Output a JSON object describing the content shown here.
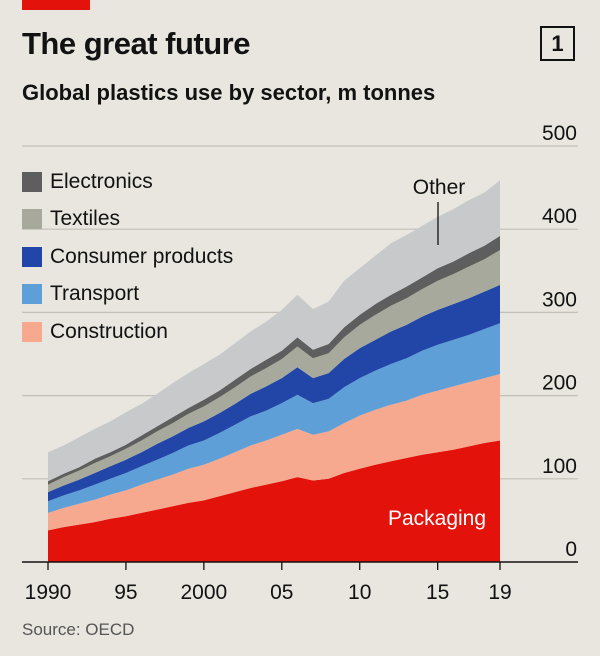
{
  "header": {
    "title": "The great future",
    "chart_number": "1"
  },
  "subtitle": "Global plastics use by sector, m tonnes",
  "source": "Source: OECD",
  "colors": {
    "Packaging": "#e3120b",
    "Construction": "#f6a98e",
    "Transport": "#5e9fd8",
    "Consumer products": "#2146a8",
    "Textiles": "#a8a99d",
    "Electronics": "#5e5e5e",
    "Other": "#c7c9cb",
    "gridline": "#c2bfb6",
    "baseline": "#121212"
  },
  "legend": [
    "Electronics",
    "Textiles",
    "Consumer products",
    "Transport",
    "Construction"
  ],
  "chart_data": {
    "type": "area",
    "stacked": true,
    "title": "The great future",
    "subtitle": "Global plastics use by sector, m tonnes",
    "x": [
      1990,
      1991,
      1992,
      1993,
      1994,
      1995,
      1996,
      1997,
      1998,
      1999,
      2000,
      2001,
      2002,
      2003,
      2004,
      2005,
      2006,
      2007,
      2008,
      2009,
      2010,
      2011,
      2012,
      2013,
      2014,
      2015,
      2016,
      2017,
      2018,
      2019
    ],
    "x_tick_values": [
      1990,
      1995,
      2000,
      2005,
      2010,
      2015,
      2019
    ],
    "x_tick_labels": [
      "1990",
      "95",
      "2000",
      "05",
      "10",
      "15",
      "19"
    ],
    "y_ticks": [
      0,
      100,
      200,
      300,
      400,
      500
    ],
    "ylim": [
      0,
      500
    ],
    "y_axis_side": "right",
    "gridlines": true,
    "series": [
      {
        "name": "Packaging",
        "values": [
          38,
          42,
          45,
          48,
          52,
          55,
          59,
          63,
          67,
          71,
          74,
          79,
          84,
          89,
          93,
          97,
          102,
          98,
          100,
          107,
          112,
          117,
          121,
          125,
          129,
          132,
          135,
          139,
          143,
          146
        ]
      },
      {
        "name": "Construction",
        "values": [
          21,
          23,
          25,
          27,
          29,
          31,
          34,
          36,
          38,
          41,
          43,
          45,
          48,
          51,
          53,
          56,
          58,
          55,
          57,
          60,
          64,
          66,
          68,
          69,
          72,
          74,
          76,
          77,
          78,
          80
        ]
      },
      {
        "name": "Transport",
        "values": [
          14,
          15,
          16,
          18,
          19,
          21,
          22,
          24,
          26,
          28,
          29,
          31,
          33,
          35,
          36,
          38,
          41,
          38,
          39,
          43,
          45,
          47,
          49,
          51,
          53,
          55,
          56,
          57,
          59,
          61
        ]
      },
      {
        "name": "Consumer products",
        "values": [
          11,
          12,
          13,
          14,
          15,
          16,
          17,
          19,
          20,
          21,
          23,
          24,
          25,
          27,
          29,
          30,
          33,
          30,
          31,
          34,
          36,
          37,
          39,
          40,
          41,
          42,
          43,
          44,
          45,
          46
        ]
      },
      {
        "name": "Textiles",
        "values": [
          9,
          10,
          11,
          12,
          12,
          13,
          14,
          15,
          16,
          17,
          18,
          19,
          20,
          21,
          22,
          23,
          25,
          24,
          24,
          26,
          28,
          30,
          31,
          32,
          33,
          35,
          36,
          38,
          39,
          42
        ]
      },
      {
        "name": "Electronics",
        "values": [
          4,
          4,
          4,
          5,
          5,
          5,
          6,
          6,
          7,
          7,
          8,
          8,
          9,
          9,
          10,
          10,
          11,
          10,
          11,
          12,
          12,
          13,
          13,
          14,
          14,
          15,
          15,
          16,
          16,
          17
        ]
      },
      {
        "name": "Other",
        "values": [
          35,
          34,
          36,
          36,
          37,
          39,
          38,
          39,
          41,
          42,
          43,
          43,
          44,
          45,
          46,
          49,
          51,
          49,
          51,
          56,
          56,
          58,
          62,
          62,
          62,
          62,
          63,
          64,
          64,
          67
        ]
      }
    ],
    "annotations": [
      {
        "label": "Packaging",
        "text_color": "#ffffff"
      },
      {
        "label": "Other",
        "text_color": "#121212"
      }
    ]
  }
}
